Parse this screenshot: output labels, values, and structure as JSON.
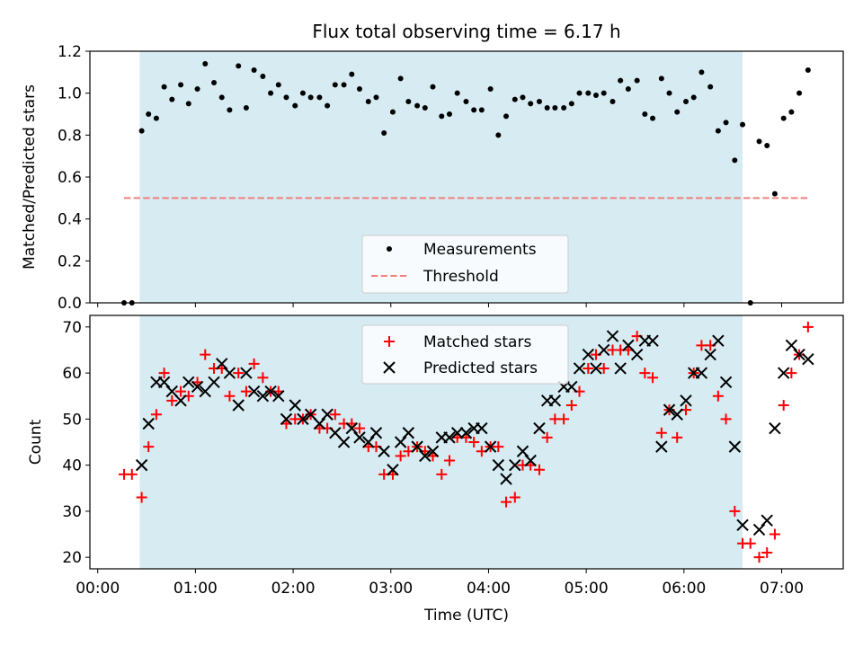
{
  "chart_data": [
    {
      "type": "scatter",
      "title": "Flux total observing time = 6.17 h",
      "ylabel": "Matched/Predicted stars",
      "xlim": [
        -0.08,
        7.63
      ],
      "ylim": [
        0,
        1.2
      ],
      "yticks": [
        0.0,
        0.2,
        0.4,
        0.6,
        0.8,
        1.0,
        1.2
      ],
      "ytick_labels": [
        "0.0",
        "0.2",
        "0.4",
        "0.6",
        "0.8",
        "1.0",
        "1.2"
      ],
      "shaded_interval_hours": [
        0.43,
        6.6
      ],
      "legend_position": "lower-center",
      "threshold": {
        "name": "Threshold",
        "value": 0.5,
        "x_range": [
          0.27,
          7.27
        ],
        "color": "#f08080"
      },
      "series": [
        {
          "name": "Measurements",
          "color": "#000000",
          "x": [
            0.27,
            0.35,
            0.45,
            0.52,
            0.6,
            0.68,
            0.76,
            0.85,
            0.93,
            1.02,
            1.1,
            1.19,
            1.27,
            1.35,
            1.44,
            1.52,
            1.6,
            1.69,
            1.77,
            1.85,
            1.93,
            2.02,
            2.1,
            2.18,
            2.27,
            2.35,
            2.43,
            2.52,
            2.6,
            2.68,
            2.77,
            2.85,
            2.93,
            3.02,
            3.1,
            3.18,
            3.27,
            3.35,
            3.43,
            3.52,
            3.6,
            3.68,
            3.77,
            3.85,
            3.93,
            4.02,
            4.1,
            4.18,
            4.27,
            4.35,
            4.43,
            4.52,
            4.6,
            4.68,
            4.77,
            4.85,
            4.93,
            5.02,
            5.1,
            5.18,
            5.27,
            5.35,
            5.43,
            5.52,
            5.6,
            5.68,
            5.77,
            5.85,
            5.93,
            6.02,
            6.1,
            6.18,
            6.27,
            6.35,
            6.43,
            6.52,
            6.6,
            6.68,
            6.77,
            6.85,
            6.93,
            7.02,
            7.1,
            7.18,
            7.27
          ],
          "y": [
            0.0,
            0.0,
            0.82,
            0.9,
            0.88,
            1.03,
            0.97,
            1.04,
            0.95,
            1.02,
            1.14,
            1.05,
            0.98,
            0.92,
            1.13,
            0.93,
            1.11,
            1.08,
            1.0,
            1.04,
            0.98,
            0.94,
            1.0,
            0.98,
            0.98,
            0.94,
            1.04,
            1.04,
            1.09,
            1.02,
            0.96,
            0.98,
            0.81,
            0.91,
            1.07,
            0.96,
            0.94,
            0.93,
            1.03,
            0.89,
            0.9,
            1.0,
            0.96,
            0.92,
            0.92,
            1.02,
            0.8,
            0.89,
            0.97,
            0.98,
            0.95,
            0.96,
            0.93,
            0.93,
            0.93,
            0.95,
            1.0,
            1.0,
            0.99,
            1.0,
            0.96,
            1.06,
            1.02,
            1.06,
            0.9,
            0.88,
            1.07,
            1.0,
            0.91,
            0.96,
            0.98,
            1.1,
            1.03,
            0.82,
            0.86,
            0.68,
            0.85,
            0.0,
            0.77,
            0.75,
            0.52,
            0.88,
            0.91,
            1.0,
            1.11
          ]
        }
      ]
    },
    {
      "type": "scatter",
      "xlabel": "Time (UTC)",
      "ylabel": "Count",
      "xlim": [
        -0.08,
        7.63
      ],
      "ylim": [
        17.5,
        72.5
      ],
      "xticks": [
        0,
        1,
        2,
        3,
        4,
        5,
        6,
        7
      ],
      "xtick_labels": [
        "00:00",
        "01:00",
        "02:00",
        "03:00",
        "04:00",
        "05:00",
        "06:00",
        "07:00"
      ],
      "yticks": [
        20,
        30,
        40,
        50,
        60,
        70
      ],
      "ytick_labels": [
        "20",
        "30",
        "40",
        "50",
        "60",
        "70"
      ],
      "shaded_interval_hours": [
        0.43,
        6.6
      ],
      "legend_position": "upper-center",
      "series": [
        {
          "name": "Matched stars",
          "color": "#ff0000",
          "marker": "plus",
          "x": [
            0.27,
            0.35,
            0.45,
            0.52,
            0.6,
            0.68,
            0.76,
            0.85,
            0.93,
            1.02,
            1.1,
            1.19,
            1.27,
            1.35,
            1.44,
            1.52,
            1.6,
            1.69,
            1.77,
            1.85,
            1.93,
            2.02,
            2.1,
            2.18,
            2.27,
            2.35,
            2.43,
            2.52,
            2.6,
            2.68,
            2.77,
            2.85,
            2.93,
            3.02,
            3.1,
            3.18,
            3.27,
            3.35,
            3.43,
            3.52,
            3.6,
            3.68,
            3.77,
            3.85,
            3.93,
            4.02,
            4.1,
            4.18,
            4.27,
            4.35,
            4.43,
            4.52,
            4.6,
            4.68,
            4.77,
            4.85,
            4.93,
            5.02,
            5.1,
            5.18,
            5.27,
            5.35,
            5.43,
            5.52,
            5.6,
            5.68,
            5.77,
            5.85,
            5.93,
            6.02,
            6.1,
            6.18,
            6.27,
            6.35,
            6.43,
            6.52,
            6.6,
            6.68,
            6.77,
            6.85,
            6.93,
            7.02,
            7.1,
            7.18,
            7.27
          ],
          "y": [
            38,
            38,
            33,
            44,
            51,
            60,
            54,
            56,
            55,
            58,
            64,
            61,
            61,
            55,
            60,
            56,
            62,
            59,
            56,
            56,
            49,
            50,
            50,
            51,
            48,
            48,
            51,
            49,
            49,
            48,
            44,
            44,
            38,
            38,
            42,
            43,
            44,
            43,
            42,
            38,
            41,
            46,
            46,
            45,
            43,
            44,
            44,
            32,
            33,
            40,
            40,
            39,
            46,
            50,
            50,
            53,
            56,
            61,
            64,
            61,
            65,
            65,
            65,
            68,
            60,
            59,
            47,
            52,
            46,
            52,
            60,
            66,
            66,
            55,
            50,
            30,
            23,
            23,
            20,
            21,
            25,
            53,
            60,
            64,
            70
          ]
        },
        {
          "name": "Predicted stars",
          "color": "#000000",
          "marker": "x",
          "x": [
            0.45,
            0.52,
            0.6,
            0.68,
            0.76,
            0.85,
            0.93,
            1.02,
            1.1,
            1.19,
            1.27,
            1.35,
            1.44,
            1.52,
            1.6,
            1.69,
            1.77,
            1.85,
            1.93,
            2.02,
            2.1,
            2.18,
            2.27,
            2.35,
            2.43,
            2.52,
            2.6,
            2.68,
            2.77,
            2.85,
            2.93,
            3.02,
            3.1,
            3.18,
            3.27,
            3.35,
            3.43,
            3.52,
            3.6,
            3.68,
            3.77,
            3.85,
            3.93,
            4.02,
            4.1,
            4.18,
            4.27,
            4.35,
            4.43,
            4.52,
            4.6,
            4.68,
            4.77,
            4.85,
            4.93,
            5.02,
            5.1,
            5.18,
            5.27,
            5.35,
            5.43,
            5.52,
            5.6,
            5.68,
            5.77,
            5.85,
            5.93,
            6.02,
            6.1,
            6.18,
            6.27,
            6.35,
            6.43,
            6.52,
            6.6,
            6.77,
            6.85,
            6.93,
            7.02,
            7.1,
            7.18,
            7.27
          ],
          "y": [
            40,
            49,
            58,
            58,
            56,
            54,
            58,
            57,
            56,
            58,
            62,
            60,
            53,
            60,
            56,
            55,
            56,
            55,
            50,
            53,
            50,
            51,
            49,
            51,
            47,
            45,
            48,
            46,
            45,
            47,
            43,
            39,
            45,
            47,
            44,
            42,
            43,
            46,
            46,
            47,
            47,
            48,
            48,
            44,
            40,
            37,
            40,
            43,
            41,
            48,
            54,
            54,
            57,
            57,
            61,
            64,
            61,
            65,
            68,
            61,
            66,
            64,
            67,
            67,
            44,
            52,
            51,
            54,
            60,
            60,
            64,
            67,
            58,
            44,
            27,
            26,
            28,
            48,
            60,
            66,
            64,
            63
          ]
        }
      ]
    }
  ]
}
